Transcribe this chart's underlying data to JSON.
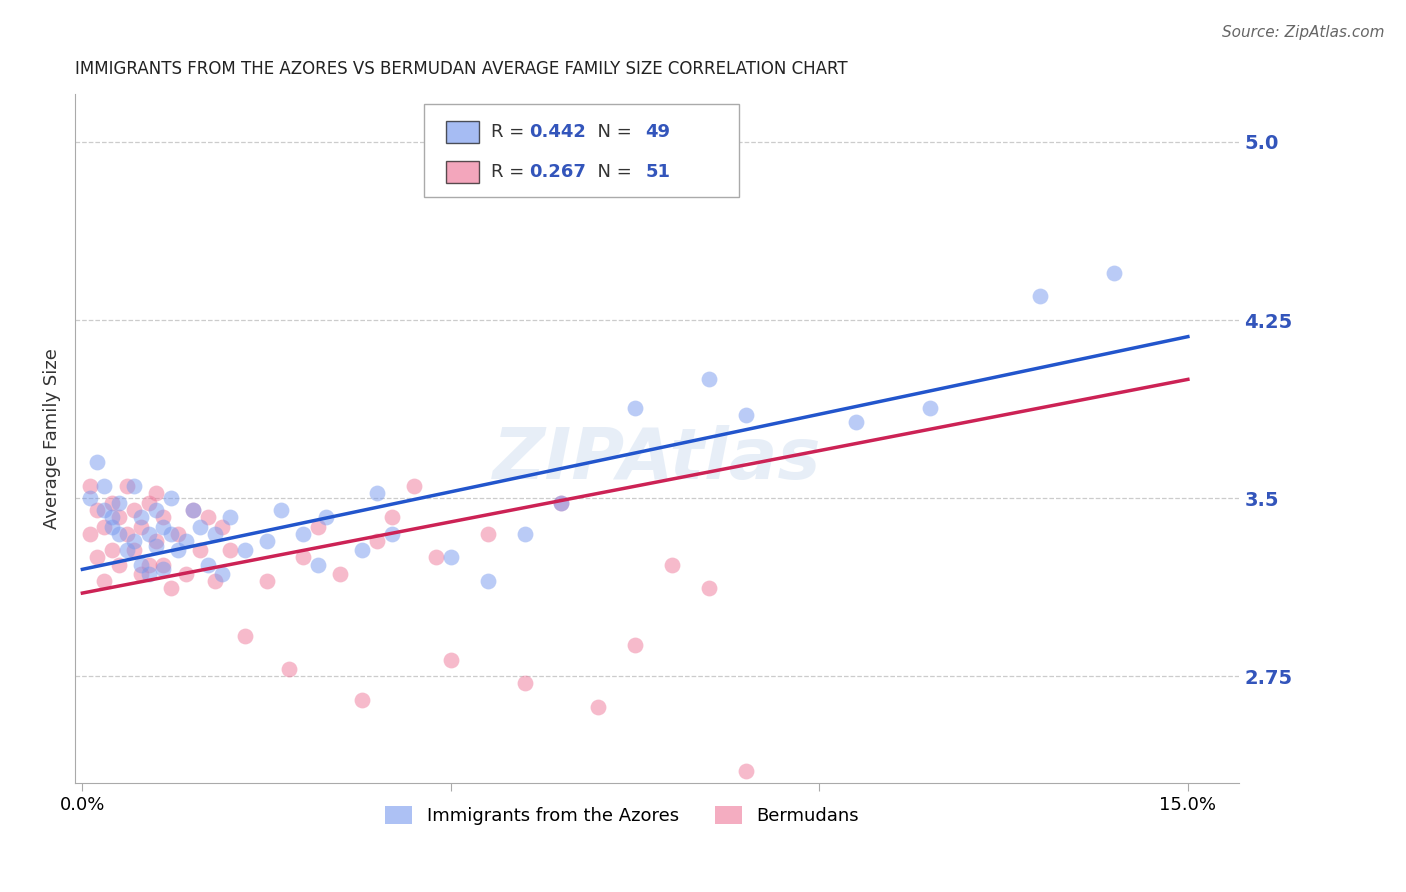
{
  "title": "IMMIGRANTS FROM THE AZORES VS BERMUDAN AVERAGE FAMILY SIZE CORRELATION CHART",
  "source": "Source: ZipAtlas.com",
  "ylabel": "Average Family Size",
  "xlim": [
    -0.001,
    0.157
  ],
  "ylim": [
    2.3,
    5.2
  ],
  "xtick_positions": [
    0.0,
    0.05,
    0.1,
    0.15
  ],
  "xticklabels": [
    "0.0%",
    "",
    "",
    "15.0%"
  ],
  "yticks_right": [
    2.75,
    3.5,
    4.25,
    5.0
  ],
  "background_color": "#ffffff",
  "grid_color": "#cccccc",
  "series1_label": "Immigrants from the Azores",
  "series1_color": "#7799ee",
  "series2_label": "Bermudans",
  "series2_color": "#ee7799",
  "right_axis_color": "#3355bb",
  "watermark": "ZIPAtlas",
  "legend_R1": "0.442",
  "legend_N1": "49",
  "legend_R2": "0.267",
  "legend_N2": "51",
  "s1x": [
    0.001,
    0.002,
    0.003,
    0.003,
    0.004,
    0.004,
    0.005,
    0.005,
    0.006,
    0.007,
    0.007,
    0.008,
    0.008,
    0.009,
    0.009,
    0.01,
    0.01,
    0.011,
    0.011,
    0.012,
    0.012,
    0.013,
    0.014,
    0.015,
    0.016,
    0.017,
    0.018,
    0.019,
    0.02,
    0.022,
    0.025,
    0.027,
    0.03,
    0.032,
    0.033,
    0.038,
    0.04,
    0.042,
    0.05,
    0.055,
    0.06,
    0.065,
    0.075,
    0.085,
    0.09,
    0.105,
    0.115,
    0.13,
    0.14
  ],
  "s1y": [
    3.5,
    3.65,
    3.45,
    3.55,
    3.38,
    3.42,
    3.35,
    3.48,
    3.28,
    3.32,
    3.55,
    3.42,
    3.22,
    3.35,
    3.18,
    3.45,
    3.3,
    3.38,
    3.2,
    3.35,
    3.5,
    3.28,
    3.32,
    3.45,
    3.38,
    3.22,
    3.35,
    3.18,
    3.42,
    3.28,
    3.32,
    3.45,
    3.35,
    3.22,
    3.42,
    3.28,
    3.52,
    3.35,
    3.25,
    3.15,
    3.35,
    3.48,
    3.88,
    4.0,
    3.85,
    3.82,
    3.88,
    4.35,
    4.45
  ],
  "s2x": [
    0.001,
    0.001,
    0.002,
    0.002,
    0.003,
    0.003,
    0.004,
    0.004,
    0.005,
    0.005,
    0.006,
    0.006,
    0.007,
    0.007,
    0.008,
    0.008,
    0.009,
    0.009,
    0.01,
    0.01,
    0.011,
    0.011,
    0.012,
    0.013,
    0.014,
    0.015,
    0.016,
    0.017,
    0.018,
    0.019,
    0.02,
    0.022,
    0.025,
    0.028,
    0.03,
    0.032,
    0.035,
    0.038,
    0.04,
    0.042,
    0.045,
    0.048,
    0.05,
    0.055,
    0.06,
    0.065,
    0.07,
    0.075,
    0.08,
    0.085,
    0.09
  ],
  "s2y": [
    3.55,
    3.35,
    3.45,
    3.25,
    3.38,
    3.15,
    3.48,
    3.28,
    3.42,
    3.22,
    3.55,
    3.35,
    3.45,
    3.28,
    3.38,
    3.18,
    3.48,
    3.22,
    3.52,
    3.32,
    3.42,
    3.22,
    3.12,
    3.35,
    3.18,
    3.45,
    3.28,
    3.42,
    3.15,
    3.38,
    3.28,
    2.92,
    3.15,
    2.78,
    3.25,
    3.38,
    3.18,
    2.65,
    3.32,
    3.42,
    3.55,
    3.25,
    2.82,
    3.35,
    2.72,
    3.48,
    2.62,
    2.88,
    3.22,
    3.12,
    2.35
  ],
  "line1_x0": 0.0,
  "line1_x1": 0.15,
  "line1_y0": 3.2,
  "line1_y1": 4.18,
  "line2_x0": 0.0,
  "line2_x1": 0.15,
  "line2_y0": 3.1,
  "line2_y1": 4.0
}
